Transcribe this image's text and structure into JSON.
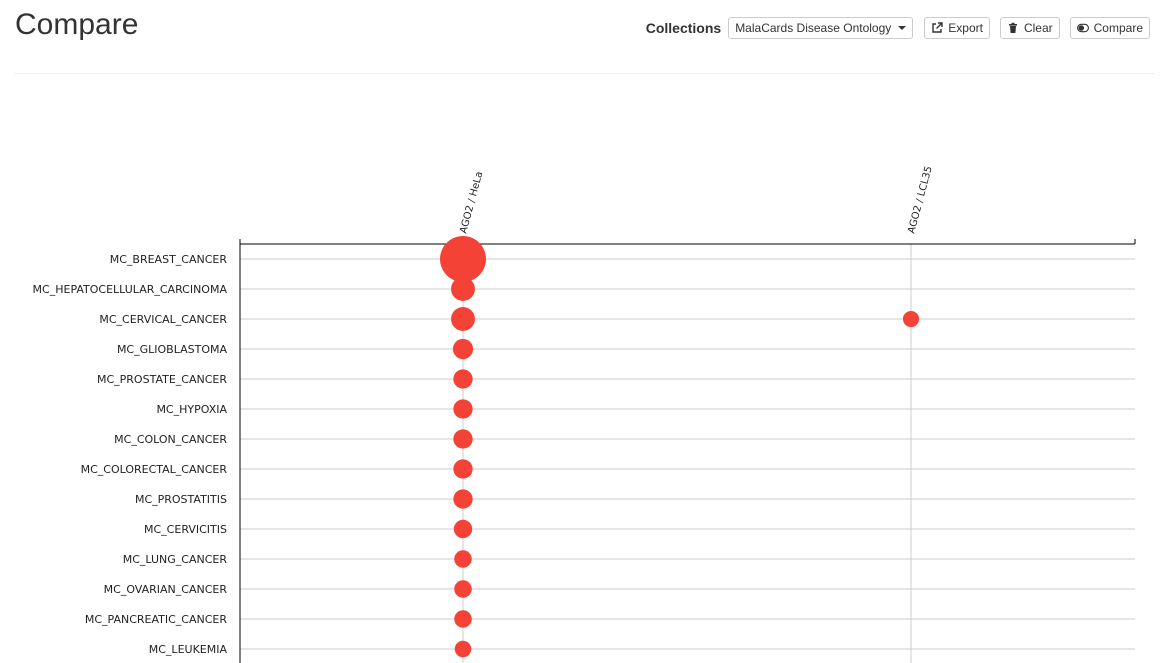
{
  "page": {
    "title": "Compare"
  },
  "toolbar": {
    "collections_label": "Collections",
    "collection_selected": "MalaCards Disease Ontology",
    "export_label": "Export",
    "clear_label": "Clear",
    "compare_label": "Compare"
  },
  "icons": {
    "dropdown": "chevron-down-icon",
    "export": "external-link-icon",
    "clear": "trash-icon",
    "compare": "toggle-icon"
  },
  "colors": {
    "bubble": "#f44336",
    "grid": "#cccccc",
    "axis": "#000000"
  },
  "chart_data": {
    "type": "scatter",
    "title": "",
    "xlabel": "",
    "ylabel": "",
    "columns": [
      "AGO2 / HeLa",
      "AGO2 / LCL35"
    ],
    "rows": [
      "MC_BREAST_CANCER",
      "MC_HEPATOCELLULAR_CARCINOMA",
      "MC_CERVICAL_CANCER",
      "MC_GLIOBLASTOMA",
      "MC_PROSTATE_CANCER",
      "MC_HYPOXIA",
      "MC_COLON_CANCER",
      "MC_COLORECTAL_CANCER",
      "MC_PROSTATITIS",
      "MC_CERVICITIS",
      "MC_LUNG_CANCER",
      "MC_OVARIAN_CANCER",
      "MC_PANCREATIC_CANCER",
      "MC_LEUKEMIA"
    ],
    "points": [
      {
        "row": "MC_BREAST_CANCER",
        "column": "AGO2 / HeLa",
        "size": 1.0
      },
      {
        "row": "MC_HEPATOCELLULAR_CARCINOMA",
        "column": "AGO2 / HeLa",
        "size": 0.52
      },
      {
        "row": "MC_CERVICAL_CANCER",
        "column": "AGO2 / HeLa",
        "size": 0.52
      },
      {
        "row": "MC_CERVICAL_CANCER",
        "column": "AGO2 / LCL35",
        "size": 0.35
      },
      {
        "row": "MC_GLIOBLASTOMA",
        "column": "AGO2 / HeLa",
        "size": 0.44
      },
      {
        "row": "MC_PROSTATE_CANCER",
        "column": "AGO2 / HeLa",
        "size": 0.42
      },
      {
        "row": "MC_HYPOXIA",
        "column": "AGO2 / HeLa",
        "size": 0.42
      },
      {
        "row": "MC_COLON_CANCER",
        "column": "AGO2 / HeLa",
        "size": 0.42
      },
      {
        "row": "MC_COLORECTAL_CANCER",
        "column": "AGO2 / HeLa",
        "size": 0.42
      },
      {
        "row": "MC_PROSTATITIS",
        "column": "AGO2 / HeLa",
        "size": 0.42
      },
      {
        "row": "MC_CERVICITIS",
        "column": "AGO2 / HeLa",
        "size": 0.4
      },
      {
        "row": "MC_LUNG_CANCER",
        "column": "AGO2 / HeLa",
        "size": 0.38
      },
      {
        "row": "MC_OVARIAN_CANCER",
        "column": "AGO2 / HeLa",
        "size": 0.38
      },
      {
        "row": "MC_PANCREATIC_CANCER",
        "column": "AGO2 / HeLa",
        "size": 0.38
      },
      {
        "row": "MC_LEUKEMIA",
        "column": "AGO2 / HeLa",
        "size": 0.36
      }
    ],
    "grid": true,
    "legend": "none"
  }
}
